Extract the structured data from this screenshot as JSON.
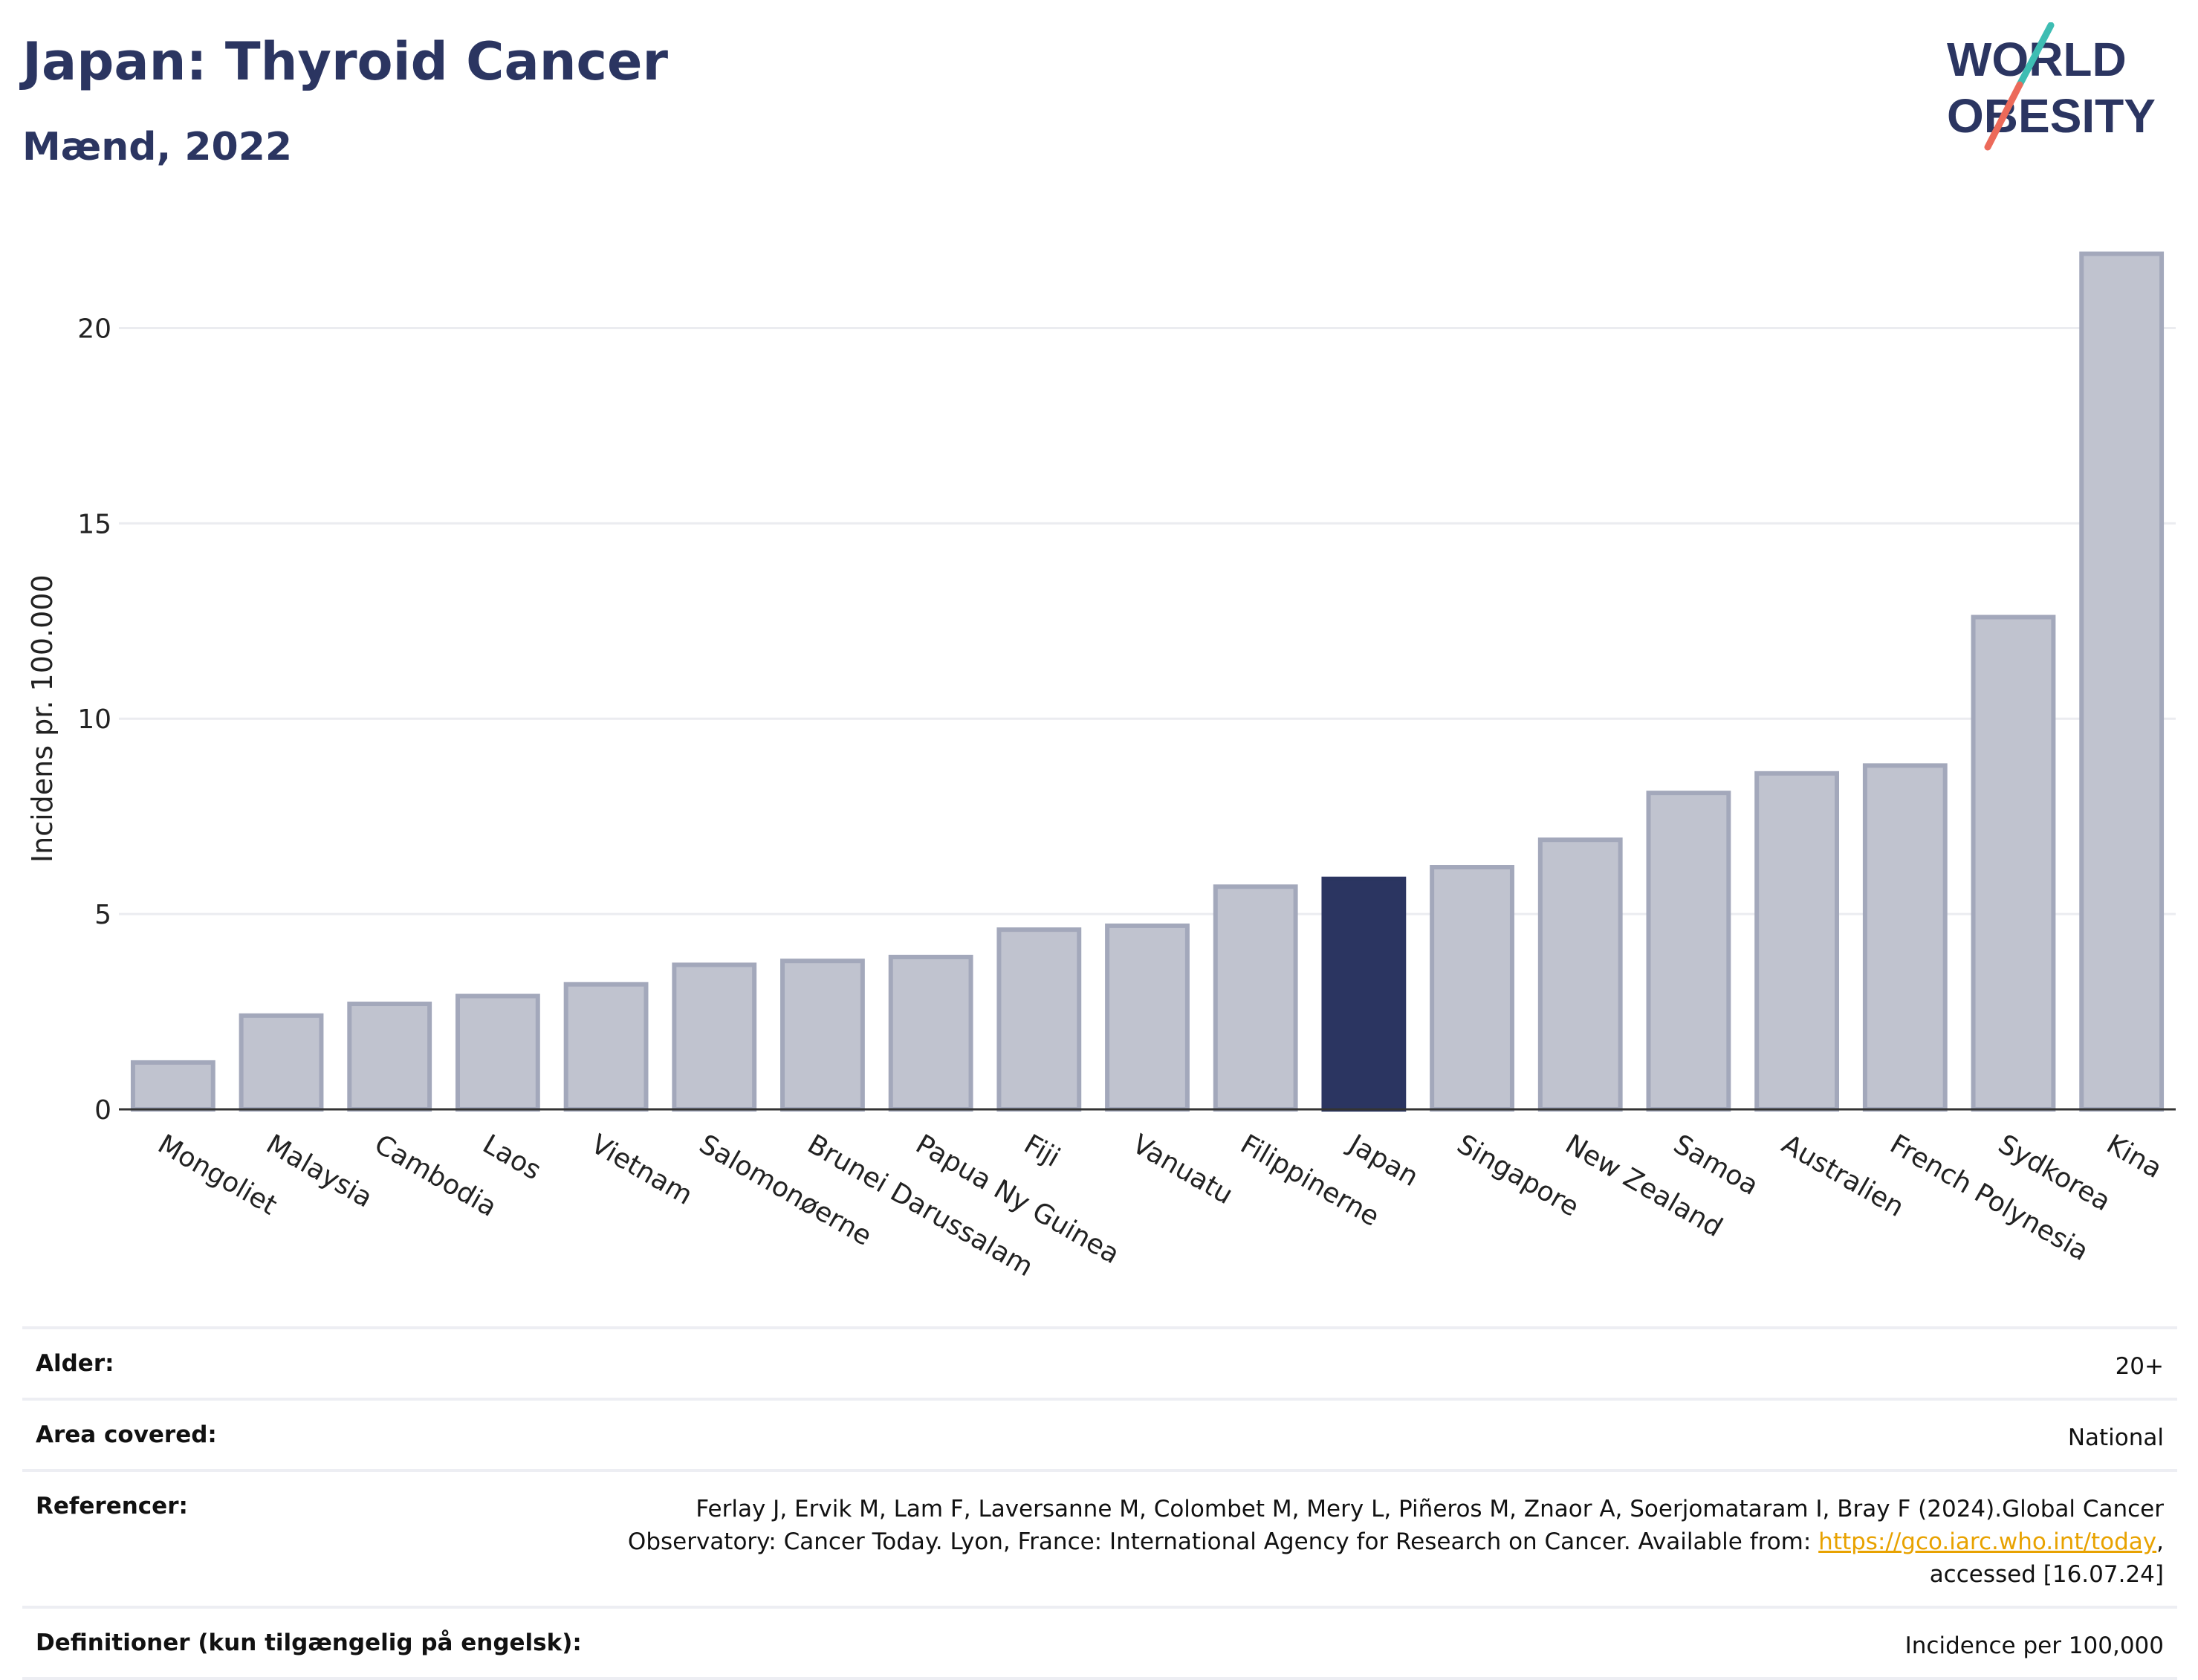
{
  "header": {
    "title": "Japan: Thyroid Cancer",
    "subtitle": "Mænd, 2022"
  },
  "logo": {
    "line1": "WORLD",
    "line2": "OBESITY",
    "accent_teal": "#3ebdb3",
    "accent_coral": "#ec6a5a"
  },
  "colors": {
    "navy": "#2b3561",
    "bar_fill": "#c0c3cf",
    "bar_stroke": "#a3a8bb",
    "highlight": "#2b3561",
    "grid": "#ebecf0",
    "link": "#e8a200"
  },
  "chart_data": {
    "type": "bar",
    "ylabel": "Incidens pr. 100.000",
    "xlabel": "",
    "ylim": [
      0,
      22.5
    ],
    "yticks": [
      0,
      5,
      10,
      15,
      20
    ],
    "grid": true,
    "highlight_category": "Japan",
    "categories": [
      "Mongoliet",
      "Malaysia",
      "Cambodia",
      "Laos",
      "Vietnam",
      "Salomonøerne",
      "Brunei Darussalam",
      "Papua Ny Guinea",
      "Fiji",
      "Vanuatu",
      "Filippinerne",
      "Japan",
      "Singapore",
      "New Zealand",
      "Samoa",
      "Australien",
      "French Polynesia",
      "Sydkorea",
      "Kina"
    ],
    "values": [
      1.2,
      2.4,
      2.7,
      2.9,
      3.2,
      3.7,
      3.8,
      3.9,
      4.6,
      4.7,
      5.7,
      5.9,
      6.2,
      6.9,
      8.1,
      8.6,
      8.8,
      12.6,
      21.9
    ]
  },
  "meta": {
    "rows": [
      {
        "label": "Alder:",
        "value": "20+"
      },
      {
        "label": "Area covered:",
        "value": "National"
      },
      {
        "label": "Referencer:",
        "value_before": "Ferlay J, Ervik M, Lam F, Laversanne M, Colombet M, Mery L, Piñeros M, Znaor A, Soerjomataram I, Bray F (2024).Global Cancer Observatory: Cancer Today. Lyon, France: International Agency for Research on Cancer. Available from: ",
        "link_text": "https://gco.iarc.who.int/today",
        "value_after": ", accessed [16.07.24]"
      },
      {
        "label": "Definitioner (kun tilgængelig på engelsk):",
        "value": "Incidence per 100,000"
      }
    ]
  }
}
